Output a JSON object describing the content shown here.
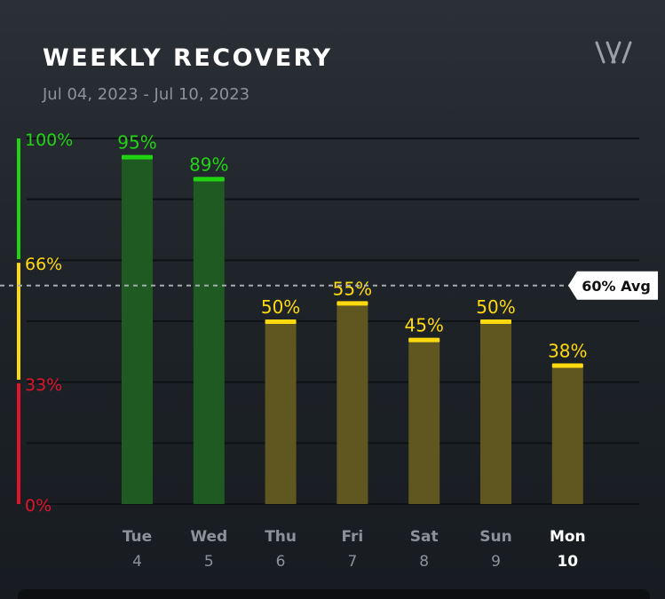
{
  "header": {
    "title": "WEEKLY RECOVERY",
    "date_range": "Jul 04, 2023 - Jul 10, 2023",
    "logo_icon": "whoop-logo-icon"
  },
  "average": {
    "value": 60,
    "label": "60% Avg"
  },
  "colors": {
    "green": "#22d314",
    "yellow": "#ffd90f",
    "red": "#e0142b",
    "green_bar": "#1f5a22",
    "yellow_bar": "#5f5620"
  },
  "chart_data": {
    "type": "bar",
    "title": "WEEKLY RECOVERY",
    "categories": [
      "Tue 4",
      "Wed 5",
      "Thu 6",
      "Fri 7",
      "Sat 8",
      "Sun 9",
      "Mon 10"
    ],
    "days": [
      "Tue",
      "Wed",
      "Thu",
      "Fri",
      "Sat",
      "Sun",
      "Mon"
    ],
    "dates": [
      "4",
      "5",
      "6",
      "7",
      "8",
      "9",
      "10"
    ],
    "values": [
      95,
      89,
      50,
      55,
      45,
      50,
      38
    ],
    "value_labels": [
      "95%",
      "89%",
      "50%",
      "55%",
      "45%",
      "50%",
      "38%"
    ],
    "y_ticks": [
      {
        "value": 100,
        "label": "100%"
      },
      {
        "value": 66,
        "label": "66%"
      },
      {
        "value": 33,
        "label": "33%"
      },
      {
        "value": 0,
        "label": "0%"
      }
    ],
    "ylim": [
      0,
      100
    ],
    "zones": [
      {
        "from": 67,
        "to": 100,
        "color": "green"
      },
      {
        "from": 34,
        "to": 66,
        "color": "yellow"
      },
      {
        "from": 0,
        "to": 33,
        "color": "red"
      }
    ],
    "highlighted_day": "Mon",
    "grid": true
  }
}
